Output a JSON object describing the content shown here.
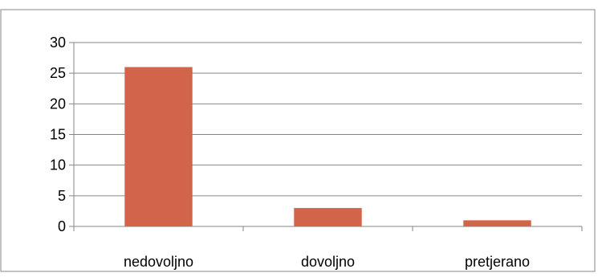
{
  "chart_data": {
    "type": "bar",
    "categories": [
      "nedovoljno",
      "dovoljno",
      "pretjerano"
    ],
    "values": [
      26,
      3,
      1
    ],
    "ylim": [
      0,
      30
    ],
    "yticks": [
      0,
      5,
      10,
      15,
      20,
      25,
      30
    ],
    "grid": true,
    "legend": "none",
    "bar_color": "#D2644A",
    "grid_color": "#868686"
  }
}
